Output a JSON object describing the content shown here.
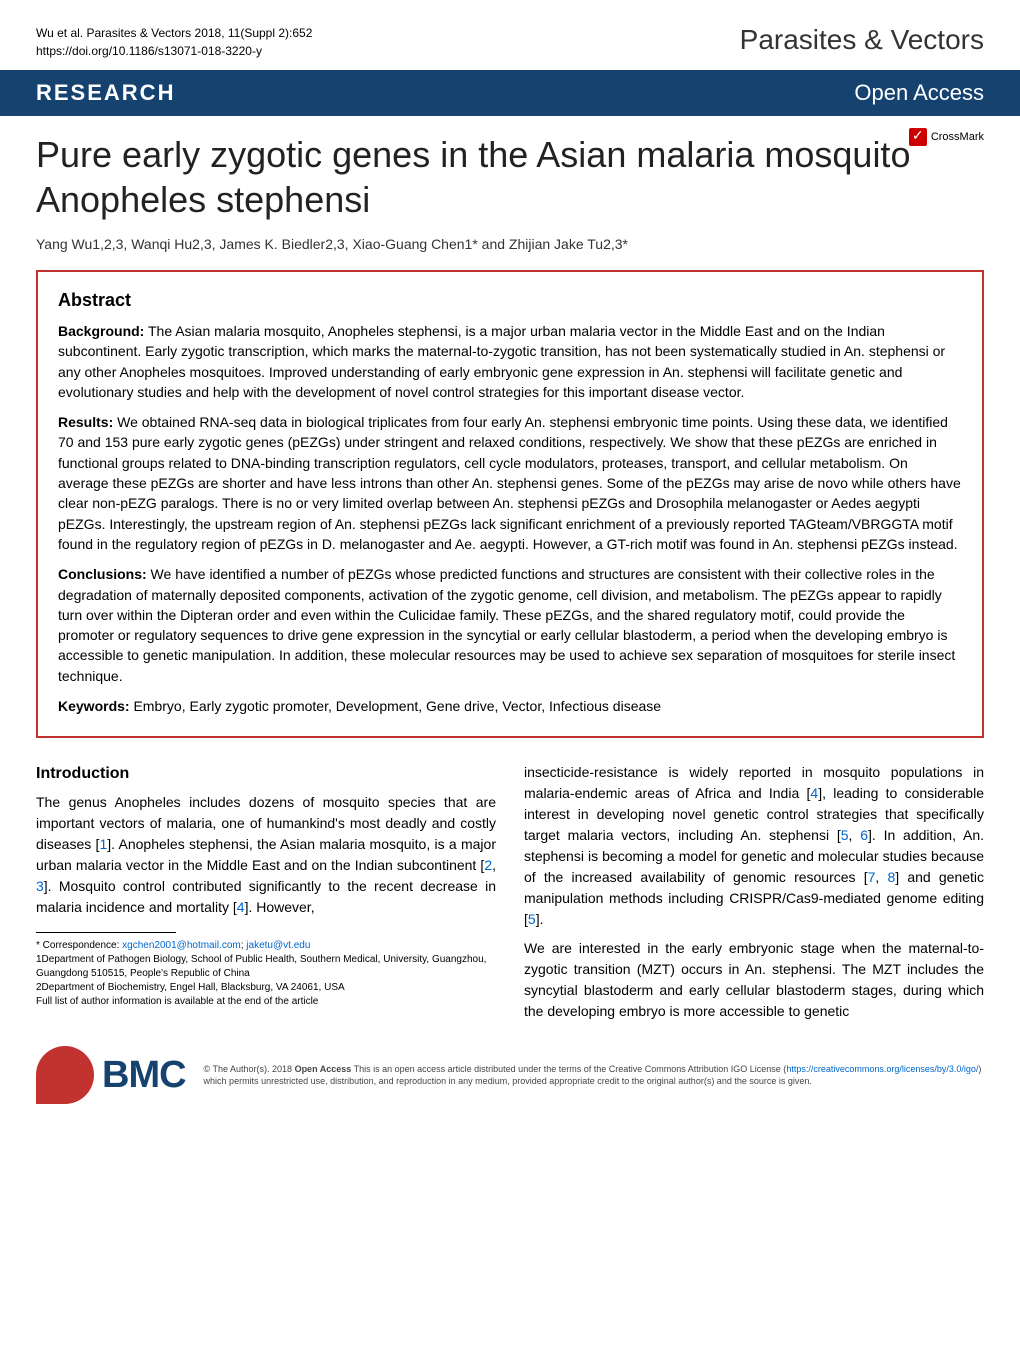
{
  "header": {
    "citation_line1": "Wu et al. Parasites & Vectors 2018, 11(Suppl 2):652",
    "citation_line2": "https://doi.org/10.1186/s13071-018-3220-y",
    "journal_name": "Parasites & Vectors"
  },
  "banner": {
    "left_label": "RESEARCH",
    "right_label": "Open Access"
  },
  "title": {
    "text": "Pure early zygotic genes in the Asian malaria mosquito Anopheles stephensi",
    "crossmark_label": "CrossMark"
  },
  "authors": "Yang Wu1,2,3, Wanqi Hu2,3, James K. Biedler2,3, Xiao-Guang Chen1* and Zhijian Jake Tu2,3*",
  "abstract": {
    "heading": "Abstract",
    "background_label": "Background:",
    "background_text": " The Asian malaria mosquito, Anopheles stephensi, is a major urban malaria vector in the Middle East and on the Indian subcontinent. Early zygotic transcription, which marks the maternal-to-zygotic transition, has not been systematically studied in An. stephensi or any other Anopheles mosquitoes. Improved understanding of early embryonic gene expression in An. stephensi will facilitate genetic and evolutionary studies and help with the development of novel control strategies for this important disease vector.",
    "results_label": "Results:",
    "results_text": " We obtained RNA-seq data in biological triplicates from four early An. stephensi embryonic time points. Using these data, we identified 70 and 153 pure early zygotic genes (pEZGs) under stringent and relaxed conditions, respectively. We show that these pEZGs are enriched in functional groups related to DNA-binding transcription regulators, cell cycle modulators, proteases, transport, and cellular metabolism. On average these pEZGs are shorter and have less introns than other An. stephensi genes. Some of the pEZGs may arise de novo while others have clear non-pEZG paralogs. There is no or very limited overlap between An. stephensi pEZGs and Drosophila melanogaster or Aedes aegypti pEZGs. Interestingly, the upstream region of An. stephensi pEZGs lack significant enrichment of a previously reported TAGteam/VBRGGTA motif found in the regulatory region of pEZGs in D. melanogaster and Ae. aegypti. However, a GT-rich motif was found in An. stephensi pEZGs instead.",
    "conclusions_label": "Conclusions:",
    "conclusions_text": " We have identified a number of pEZGs whose predicted functions and structures are consistent with their collective roles in the degradation of maternally deposited components, activation of the zygotic genome, cell division, and metabolism. The pEZGs appear to rapidly turn over within the Dipteran order and even within the Culicidae family. These pEZGs, and the shared regulatory motif, could provide the promoter or regulatory sequences to drive gene expression in the syncytial or early cellular blastoderm, a period when the developing embryo is accessible to genetic manipulation. In addition, these molecular resources may be used to achieve sex separation of mosquitoes for sterile insect technique.",
    "keywords_label": "Keywords:",
    "keywords_text": " Embryo, Early zygotic promoter, Development, Gene drive, Vector, Infectious disease"
  },
  "body": {
    "intro_heading": "Introduction",
    "col1_p1_a": "The genus Anopheles includes dozens of mosquito species that are important vectors of malaria, one of humankind's most deadly and costly diseases [",
    "col1_p1_ref1": "1",
    "col1_p1_b": "]. Anopheles stephensi, the Asian malaria mosquito, is a major urban malaria vector in the Middle East and on the Indian subcontinent [",
    "col1_p1_ref2": "2",
    "col1_p1_c": ", ",
    "col1_p1_ref3": "3",
    "col1_p1_d": "]. Mosquito control contributed significantly to the recent decrease in malaria incidence and mortality [",
    "col1_p1_ref4": "4",
    "col1_p1_e": "]. However,",
    "col2_p1_a": "insecticide-resistance is widely reported in mosquito populations in malaria-endemic areas of Africa and India [",
    "col2_p1_ref4": "4",
    "col2_p1_b": "], leading to considerable interest in developing novel genetic control strategies that specifically target malaria vectors, including An. stephensi [",
    "col2_p1_ref5": "5",
    "col2_p1_c": ", ",
    "col2_p1_ref6": "6",
    "col2_p1_d": "]. In addition, An. stephensi is becoming a model for genetic and molecular studies because of the increased availability of genomic resources [",
    "col2_p1_ref7": "7",
    "col2_p1_e": ", ",
    "col2_p1_ref8": "8",
    "col2_p1_f": "] and genetic manipulation methods including CRISPR/Cas9-mediated genome editing [",
    "col2_p1_ref5b": "5",
    "col2_p1_g": "].",
    "col2_p2": "We are interested in the early embryonic stage when the maternal-to-zygotic transition (MZT) occurs in An. stephensi. The MZT includes the syncytial blastoderm and early cellular blastoderm stages, during which the developing embryo is more accessible to genetic"
  },
  "footnotes": {
    "correspondence_label": "* Correspondence: ",
    "email1": "xgchen2001@hotmail.com",
    "sep": "; ",
    "email2": "jaketu@vt.edu",
    "affil1": "1Department of Pathogen Biology, School of Public Health, Southern Medical, University, Guangzhou, Guangdong 510515, People's Republic of China",
    "affil2": "2Department of Biochemistry, Engel Hall, Blacksburg, VA 24061, USA",
    "full_list": "Full list of author information is available at the end of the article"
  },
  "footer": {
    "bmc_label": "BMC",
    "license_a": "© The Author(s). 2018 ",
    "license_bold": "Open Access",
    "license_b": " This is an open access article distributed under the terms of the Creative Commons Attribution IGO License (",
    "license_url": "https://creativecommons.org/licenses/by/3.0/igo/",
    "license_c": ") which permits unrestricted use, distribution, and reproduction in any medium, provided appropriate credit to the original author(s) and the source is given."
  },
  "colors": {
    "banner_bg": "#164270",
    "accent_red": "#c23330",
    "link_blue": "#0066cc"
  }
}
